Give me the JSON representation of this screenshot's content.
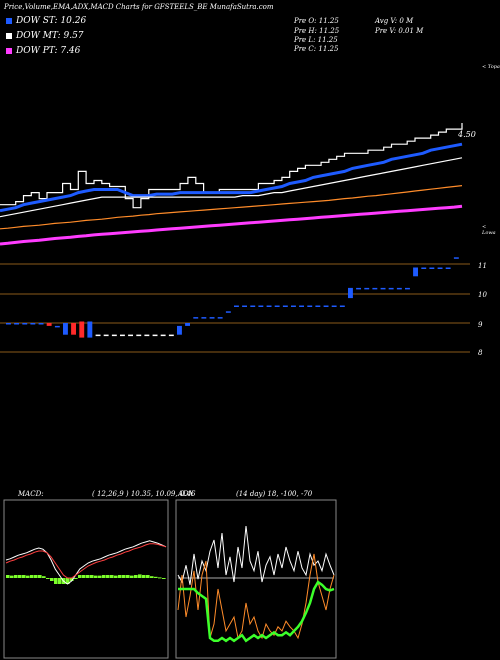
{
  "header": {
    "title": "Price,Volume,EMA,ADX,MACD Charts for GFSTEELS_BE MunafaSutra.com"
  },
  "legend": {
    "st": {
      "label": "DOW ST: 10.26",
      "color": "#1e5bff"
    },
    "mt": {
      "label": "DOW MT: 9.57",
      "color": "#ffffff"
    },
    "pt": {
      "label": "DOW PT: 7.46",
      "color": "#ff3cff"
    }
  },
  "ohlc": {
    "open": "Pre   O: 11.25",
    "high": "Pre   H: 11.25",
    "low": "Pre   L: 11.25",
    "close": "Pre   C: 11.25",
    "avg": "Avg V: 0   M",
    "vol": "Pre   V: 0.01  M"
  },
  "labels": {
    "topa": "< Topa",
    "price_tag": "4.50",
    "lowa": "< Lowa"
  },
  "ticks": {
    "t11": "11",
    "t10": "10",
    "t9": "9",
    "t8": "8"
  },
  "macd_panel": {
    "title": "MACD:",
    "params": "( 12,26,9 ) 10.35,  10.09,  0.46"
  },
  "adx_panel": {
    "title": "ADX",
    "params": "(14  day) 18, -100, -70"
  },
  "chart_data": [
    {
      "type": "line",
      "name": "price-ema",
      "x": [
        0,
        1,
        2,
        3,
        4,
        5,
        6,
        7,
        8,
        9,
        10,
        11,
        12,
        13,
        14,
        15,
        16,
        17,
        18,
        19,
        20,
        21,
        22,
        23,
        24,
        25,
        26,
        27,
        28,
        29,
        30,
        31,
        32,
        33,
        34,
        35,
        36,
        37,
        38,
        39,
        40,
        41,
        42,
        43,
        44,
        45,
        46,
        47,
        48,
        49,
        50,
        51,
        52,
        53,
        54,
        55,
        56,
        57,
        58,
        59
      ],
      "series": [
        {
          "name": "price",
          "color": "#ffffff",
          "values": [
            8.8,
            8.8,
            8.9,
            9.1,
            9.2,
            9.0,
            9.2,
            9.2,
            9.5,
            9.3,
            9.9,
            9.5,
            9.6,
            9.5,
            9.4,
            9.4,
            9.0,
            8.7,
            9.0,
            9.3,
            9.3,
            9.3,
            9.3,
            9.5,
            9.7,
            9.5,
            9.2,
            9.2,
            9.3,
            9.3,
            9.3,
            9.3,
            9.3,
            9.5,
            9.5,
            9.6,
            9.7,
            9.9,
            10.0,
            10.1,
            10.1,
            10.2,
            10.3,
            10.4,
            10.5,
            10.5,
            10.5,
            10.6,
            10.6,
            10.7,
            10.8,
            10.8,
            10.9,
            11.0,
            11.0,
            11.1,
            11.2,
            11.3,
            11.3,
            11.5
          ]
        },
        {
          "name": "ema-short",
          "color": "#1e5bff",
          "values": [
            8.6,
            8.65,
            8.7,
            8.8,
            8.85,
            8.9,
            8.95,
            9.0,
            9.05,
            9.1,
            9.2,
            9.25,
            9.3,
            9.3,
            9.3,
            9.3,
            9.2,
            9.1,
            9.1,
            9.1,
            9.15,
            9.15,
            9.15,
            9.2,
            9.2,
            9.2,
            9.2,
            9.2,
            9.2,
            9.2,
            9.2,
            9.2,
            9.2,
            9.25,
            9.3,
            9.35,
            9.4,
            9.5,
            9.55,
            9.6,
            9.7,
            9.75,
            9.8,
            9.85,
            9.9,
            10.0,
            10.05,
            10.1,
            10.15,
            10.2,
            10.3,
            10.35,
            10.4,
            10.45,
            10.5,
            10.6,
            10.65,
            10.7,
            10.75,
            10.8
          ]
        },
        {
          "name": "ema-mid",
          "color": "#ffffff",
          "values": [
            8.4,
            8.45,
            8.5,
            8.55,
            8.6,
            8.65,
            8.7,
            8.75,
            8.8,
            8.85,
            8.9,
            8.95,
            9.0,
            9.05,
            9.05,
            9.05,
            9.05,
            9.05,
            9.05,
            9.05,
            9.05,
            9.05,
            9.05,
            9.05,
            9.05,
            9.05,
            9.05,
            9.05,
            9.05,
            9.05,
            9.05,
            9.1,
            9.1,
            9.1,
            9.15,
            9.2,
            9.2,
            9.25,
            9.3,
            9.35,
            9.4,
            9.45,
            9.5,
            9.55,
            9.6,
            9.65,
            9.7,
            9.75,
            9.8,
            9.85,
            9.9,
            9.95,
            10.0,
            10.05,
            10.1,
            10.15,
            10.2,
            10.25,
            10.3,
            10.35
          ]
        },
        {
          "name": "ema-long",
          "color": "#ff8c2a",
          "values": [
            8.0,
            8.02,
            8.05,
            8.08,
            8.1,
            8.12,
            8.15,
            8.18,
            8.2,
            8.22,
            8.25,
            8.28,
            8.3,
            8.32,
            8.35,
            8.38,
            8.4,
            8.42,
            8.45,
            8.47,
            8.5,
            8.52,
            8.54,
            8.56,
            8.58,
            8.6,
            8.62,
            8.64,
            8.66,
            8.68,
            8.7,
            8.72,
            8.74,
            8.76,
            8.78,
            8.8,
            8.82,
            8.84,
            8.86,
            8.88,
            8.9,
            8.92,
            8.94,
            8.97,
            9.0,
            9.02,
            9.05,
            9.08,
            9.1,
            9.13,
            9.16,
            9.19,
            9.22,
            9.25,
            9.28,
            9.31,
            9.34,
            9.37,
            9.4,
            9.43
          ]
        },
        {
          "name": "ema-pt",
          "color": "#ff3cff",
          "values": [
            7.5,
            7.52,
            7.55,
            7.58,
            7.6,
            7.62,
            7.65,
            7.68,
            7.7,
            7.72,
            7.75,
            7.77,
            7.8,
            7.82,
            7.84,
            7.86,
            7.88,
            7.9,
            7.92,
            7.94,
            7.96,
            7.98,
            8.0,
            8.02,
            8.04,
            8.06,
            8.08,
            8.1,
            8.12,
            8.14,
            8.16,
            8.18,
            8.2,
            8.22,
            8.24,
            8.26,
            8.28,
            8.3,
            8.32,
            8.34,
            8.36,
            8.38,
            8.4,
            8.42,
            8.44,
            8.46,
            8.48,
            8.5,
            8.52,
            8.54,
            8.56,
            8.58,
            8.6,
            8.62,
            8.64,
            8.66,
            8.68,
            8.7,
            8.72,
            8.75
          ]
        }
      ]
    },
    {
      "type": "bar",
      "name": "price-bars",
      "categories": [
        "b1",
        "b2",
        "b3",
        "b4",
        "b5",
        "b6",
        "b7",
        "b8",
        "b9",
        "b10",
        "b11",
        "b12",
        "b13",
        "b14",
        "b15",
        "b16",
        "b17",
        "b18",
        "b19",
        "b20",
        "b21",
        "b22",
        "b23",
        "b24",
        "b25",
        "b26",
        "b27",
        "b28",
        "b29",
        "b30",
        "b31",
        "b32",
        "b33",
        "b34",
        "b35",
        "b36",
        "b37",
        "b38",
        "b39",
        "b40",
        "b41",
        "b42",
        "b43",
        "b44",
        "b45",
        "b46",
        "b47",
        "b48",
        "b49",
        "b50",
        "b51",
        "b52",
        "b53",
        "b54",
        "b55",
        "b56"
      ],
      "series": [
        {
          "name": "open",
          "values": [
            9,
            9,
            9,
            9,
            9,
            9,
            8.9,
            8.6,
            9,
            9.05,
            8.5,
            8.6,
            8.6,
            8.6,
            8.6,
            8.6,
            8.6,
            8.6,
            8.6,
            8.6,
            8.6,
            8.6,
            8.9,
            9.2,
            9.2,
            9.2,
            9.2,
            9.4,
            9.6,
            9.6,
            9.6,
            9.6,
            9.6,
            9.6,
            9.6,
            9.6,
            9.6,
            9.6,
            9.6,
            9.6,
            9.6,
            9.6,
            9.85,
            10.2,
            10.2,
            10.2,
            10.2,
            10.2,
            10.2,
            10.2,
            10.6,
            10.9,
            10.9,
            10.9,
            10.9,
            11.25
          ]
        },
        {
          "name": "close",
          "values": [
            9,
            9,
            9,
            9,
            9,
            8.9,
            8.9,
            9,
            8.6,
            8.5,
            9.05,
            8.6,
            8.6,
            8.6,
            8.6,
            8.6,
            8.6,
            8.6,
            8.6,
            8.6,
            8.6,
            8.9,
            9,
            9.2,
            9.2,
            9.2,
            9.2,
            9.4,
            9.6,
            9.6,
            9.6,
            9.6,
            9.6,
            9.6,
            9.6,
            9.6,
            9.6,
            9.6,
            9.6,
            9.6,
            9.6,
            9.6,
            10.2,
            10.2,
            10.2,
            10.2,
            10.2,
            10.2,
            10.2,
            10.2,
            10.9,
            10.9,
            10.9,
            10.9,
            10.9,
            11.25
          ]
        }
      ],
      "ticks": [
        "11",
        "10",
        "9",
        "8"
      ]
    },
    {
      "type": "line",
      "name": "macd",
      "x": [
        0,
        1,
        2,
        3,
        4,
        5,
        6,
        7,
        8,
        9,
        10,
        11,
        12,
        13,
        14,
        15,
        16,
        17,
        18,
        19,
        20,
        21,
        22,
        23,
        24,
        25,
        26,
        27,
        28,
        29,
        30,
        31,
        32,
        33,
        34,
        35,
        36,
        37,
        38,
        39
      ],
      "series": [
        {
          "name": "macd",
          "color": "#ffffff",
          "values": [
            0.3,
            0.32,
            0.35,
            0.38,
            0.4,
            0.42,
            0.45,
            0.48,
            0.5,
            0.48,
            0.42,
            0.3,
            0.15,
            0.05,
            -0.05,
            -0.1,
            -0.05,
            0.05,
            0.15,
            0.2,
            0.25,
            0.28,
            0.3,
            0.32,
            0.35,
            0.38,
            0.4,
            0.42,
            0.45,
            0.48,
            0.5,
            0.52,
            0.55,
            0.58,
            0.6,
            0.62,
            0.6,
            0.58,
            0.55,
            0.52
          ]
        },
        {
          "name": "signal",
          "color": "#ff4040",
          "values": [
            0.25,
            0.28,
            0.3,
            0.33,
            0.35,
            0.38,
            0.4,
            0.43,
            0.45,
            0.45,
            0.42,
            0.35,
            0.25,
            0.15,
            0.05,
            0.0,
            0.0,
            0.05,
            0.1,
            0.15,
            0.2,
            0.23,
            0.26,
            0.28,
            0.3,
            0.33,
            0.35,
            0.38,
            0.4,
            0.43,
            0.45,
            0.48,
            0.5,
            0.52,
            0.55,
            0.57,
            0.57,
            0.56,
            0.54,
            0.52
          ]
        },
        {
          "name": "histogram",
          "color": "#7cff2a",
          "values": [
            0.05,
            0.04,
            0.05,
            0.05,
            0.05,
            0.04,
            0.05,
            0.05,
            0.05,
            0.03,
            0.0,
            -0.05,
            -0.1,
            -0.1,
            -0.1,
            -0.1,
            -0.05,
            0.0,
            0.05,
            0.05,
            0.05,
            0.05,
            0.04,
            0.04,
            0.05,
            0.05,
            0.05,
            0.04,
            0.05,
            0.05,
            0.05,
            0.04,
            0.05,
            0.06,
            0.05,
            0.05,
            0.03,
            0.02,
            0.01,
            0.0
          ]
        }
      ]
    },
    {
      "type": "line",
      "name": "adx",
      "x": [
        0,
        1,
        2,
        3,
        4,
        5,
        6,
        7,
        8,
        9,
        10,
        11,
        12,
        13,
        14,
        15,
        16,
        17,
        18,
        19,
        20,
        21,
        22,
        23,
        24,
        25,
        26,
        27,
        28,
        29,
        30,
        31,
        32,
        33,
        34,
        35,
        36,
        37,
        38,
        39
      ],
      "series": [
        {
          "name": "di-plus",
          "color": "#ffffff",
          "values": [
            55,
            50,
            62,
            48,
            70,
            52,
            65,
            58,
            72,
            80,
            60,
            85,
            55,
            68,
            50,
            75,
            60,
            90,
            65,
            58,
            72,
            50,
            62,
            68,
            55,
            70,
            60,
            75,
            65,
            58,
            72,
            60,
            55,
            70,
            62,
            65,
            58,
            70,
            62,
            55
          ]
        },
        {
          "name": "di-minus",
          "color": "#ff8c2a",
          "values": [
            30,
            55,
            25,
            40,
            58,
            30,
            55,
            65,
            10,
            20,
            45,
            30,
            15,
            20,
            25,
            10,
            15,
            35,
            20,
            25,
            15,
            10,
            20,
            15,
            12,
            18,
            15,
            22,
            18,
            15,
            10,
            20,
            35,
            55,
            70,
            50,
            40,
            30,
            45,
            55
          ]
        },
        {
          "name": "adx",
          "color": "#3cff2a",
          "values": [
            45,
            45,
            45,
            45,
            45,
            42,
            40,
            38,
            10,
            8,
            8,
            10,
            8,
            10,
            8,
            10,
            12,
            8,
            10,
            12,
            10,
            12,
            10,
            12,
            14,
            12,
            12,
            14,
            12,
            15,
            18,
            22,
            28,
            35,
            45,
            50,
            48,
            45,
            44,
            45
          ]
        }
      ]
    }
  ]
}
